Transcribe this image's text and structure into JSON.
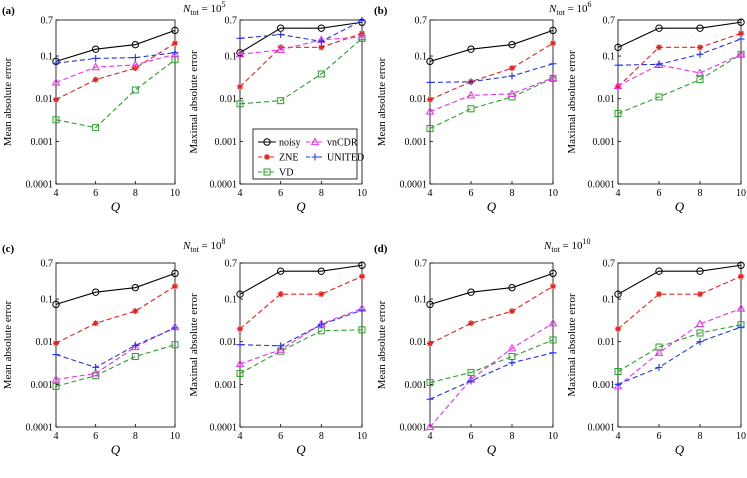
{
  "colors": {
    "noisy": "#000000",
    "ZNE": "#e8201c",
    "VD": "#26a326",
    "vnCDR": "#ee2bee",
    "UNITED": "#2435e0"
  },
  "legend": {
    "entries": [
      "noisy",
      "ZNE",
      "VD",
      "vnCDR",
      "UNITED"
    ]
  },
  "chart_data": [
    {
      "type": "line",
      "panel_label": "(a)",
      "ntot_prefix": "N",
      "ntot_sub": "tot",
      "ntot_mid": " = 10",
      "ntot_exp": "5",
      "subplot": "left",
      "ylabel": "Mean absolute error",
      "xlabel": "Q",
      "x": [
        4,
        6,
        8,
        10
      ],
      "ylim": [
        0.0001,
        0.7
      ],
      "yscale": "log",
      "xticks": [
        "4",
        "6",
        "8",
        "10"
      ],
      "yticks": [
        "0.0001",
        "0.001",
        "0.01",
        "0.1",
        "0.7"
      ],
      "series": [
        {
          "name": "noisy",
          "values": [
            0.075,
            0.145,
            0.185,
            0.4
          ]
        },
        {
          "name": "ZNE",
          "values": [
            0.0095,
            0.028,
            0.052,
            0.2
          ]
        },
        {
          "name": "VD",
          "values": [
            0.0032,
            0.0021,
            0.016,
            0.082
          ]
        },
        {
          "name": "vnCDR",
          "values": [
            0.024,
            0.055,
            0.062,
            0.11
          ]
        },
        {
          "name": "UNITED",
          "values": [
            0.068,
            0.088,
            0.092,
            0.12
          ]
        }
      ]
    },
    {
      "type": "line",
      "subplot": "right",
      "ylabel": "Maximal absolute error",
      "xlabel": "Q",
      "x": [
        4,
        6,
        8,
        10
      ],
      "ylim": [
        0.0001,
        0.7
      ],
      "yscale": "log",
      "xticks": [
        "4",
        "6",
        "8",
        "10"
      ],
      "yticks": [
        "0.0001",
        "0.001",
        "0.01",
        "0.1",
        "0.7"
      ],
      "series": [
        {
          "name": "noisy",
          "values": [
            0.12,
            0.45,
            0.45,
            0.62
          ]
        },
        {
          "name": "ZNE",
          "values": [
            0.019,
            0.16,
            0.16,
            0.34
          ]
        },
        {
          "name": "VD",
          "values": [
            0.0076,
            0.009,
            0.038,
            0.26
          ]
        },
        {
          "name": "vnCDR",
          "values": [
            0.11,
            0.14,
            0.24,
            0.28
          ]
        },
        {
          "name": "UNITED",
          "values": [
            0.26,
            0.32,
            0.22,
            0.68
          ]
        }
      ]
    },
    {
      "type": "line",
      "panel_label": "(b)",
      "ntot_prefix": "N",
      "ntot_sub": "tot",
      "ntot_mid": " = 10",
      "ntot_exp": "6",
      "subplot": "left",
      "ylabel": "Mean absolute error",
      "xlabel": "Q",
      "x": [
        4,
        6,
        8,
        10
      ],
      "ylim": [
        0.0001,
        0.7
      ],
      "yscale": "log",
      "xticks": [
        "4",
        "6",
        "8",
        "10"
      ],
      "yticks": [
        "0.0001",
        "0.001",
        "0.01",
        "0.1",
        "0.7"
      ],
      "series": [
        {
          "name": "noisy",
          "values": [
            0.075,
            0.145,
            0.185,
            0.4
          ]
        },
        {
          "name": "ZNE",
          "values": [
            0.0095,
            0.025,
            0.052,
            0.2
          ]
        },
        {
          "name": "VD",
          "values": [
            0.002,
            0.0058,
            0.011,
            0.03
          ]
        },
        {
          "name": "vnCDR",
          "values": [
            0.005,
            0.012,
            0.013,
            0.031
          ]
        },
        {
          "name": "UNITED",
          "values": [
            0.024,
            0.025,
            0.034,
            0.066
          ]
        }
      ]
    },
    {
      "type": "line",
      "subplot": "right",
      "ylabel": "Maximal absolute error",
      "xlabel": "Q",
      "x": [
        4,
        6,
        8,
        10
      ],
      "ylim": [
        0.0001,
        0.7
      ],
      "yscale": "log",
      "xticks": [
        "4",
        "6",
        "8",
        "10"
      ],
      "yticks": [
        "0.0001",
        "0.001",
        "0.01",
        "0.1",
        "0.7"
      ],
      "series": [
        {
          "name": "noisy",
          "values": [
            0.16,
            0.45,
            0.45,
            0.62
          ]
        },
        {
          "name": "ZNE",
          "values": [
            0.019,
            0.16,
            0.16,
            0.34
          ]
        },
        {
          "name": "VD",
          "values": [
            0.0045,
            0.011,
            0.028,
            0.11
          ]
        },
        {
          "name": "vnCDR",
          "values": [
            0.02,
            0.062,
            0.04,
            0.11
          ]
        },
        {
          "name": "UNITED",
          "values": [
            0.061,
            0.064,
            0.11,
            0.25
          ]
        }
      ]
    },
    {
      "type": "line",
      "panel_label": "(c)",
      "ntot_prefix": "N",
      "ntot_sub": "tot",
      "ntot_mid": " = 10",
      "ntot_exp": "8",
      "subplot": "left",
      "ylabel": "Mean absolute error",
      "xlabel": "Q",
      "x": [
        4,
        6,
        8,
        10
      ],
      "ylim": [
        0.0001,
        0.7
      ],
      "yscale": "log",
      "xticks": [
        "4",
        "6",
        "8",
        "10"
      ],
      "yticks": [
        "0.0001",
        "0.001",
        "0.01",
        "0.1",
        "0.7"
      ],
      "series": [
        {
          "name": "noisy",
          "values": [
            0.075,
            0.145,
            0.185,
            0.4
          ]
        },
        {
          "name": "ZNE",
          "values": [
            0.0092,
            0.027,
            0.052,
            0.2
          ]
        },
        {
          "name": "VD",
          "values": [
            0.0009,
            0.0016,
            0.0045,
            0.0085
          ]
        },
        {
          "name": "vnCDR",
          "values": [
            0.0013,
            0.0018,
            0.0075,
            0.022
          ]
        },
        {
          "name": "UNITED",
          "values": [
            0.005,
            0.0025,
            0.0082,
            0.021
          ]
        }
      ]
    },
    {
      "type": "line",
      "subplot": "right",
      "ylabel": "Maximal absolute error",
      "xlabel": "Q",
      "x": [
        4,
        6,
        8,
        10
      ],
      "ylim": [
        0.0001,
        0.7
      ],
      "yscale": "log",
      "xticks": [
        "4",
        "6",
        "8",
        "10"
      ],
      "yticks": [
        "0.0001",
        "0.001",
        "0.01",
        "0.1",
        "0.7"
      ],
      "series": [
        {
          "name": "noisy",
          "values": [
            0.13,
            0.45,
            0.45,
            0.62
          ]
        },
        {
          "name": "ZNE",
          "values": [
            0.02,
            0.13,
            0.13,
            0.34
          ]
        },
        {
          "name": "VD",
          "values": [
            0.0018,
            0.006,
            0.018,
            0.019
          ]
        },
        {
          "name": "vnCDR",
          "values": [
            0.003,
            0.0065,
            0.026,
            0.06
          ]
        },
        {
          "name": "UNITED",
          "values": [
            0.0085,
            0.008,
            0.025,
            0.055
          ]
        }
      ]
    },
    {
      "type": "line",
      "panel_label": "(d)",
      "ntot_prefix": "N",
      "ntot_sub": "tot",
      "ntot_mid": " = 10",
      "ntot_exp": "10",
      "subplot": "left",
      "ylabel": "Mean absolute error",
      "xlabel": "Q",
      "x": [
        4,
        6,
        8,
        10
      ],
      "ylim": [
        0.0001,
        0.7
      ],
      "yscale": "log",
      "xticks": [
        "4",
        "6",
        "8",
        "10"
      ],
      "yticks": [
        "0.0001",
        "0.001",
        "0.01",
        "0.1",
        "0.7"
      ],
      "series": [
        {
          "name": "noisy",
          "values": [
            0.075,
            0.145,
            0.185,
            0.4
          ]
        },
        {
          "name": "ZNE",
          "values": [
            0.009,
            0.027,
            0.052,
            0.2
          ]
        },
        {
          "name": "VD",
          "values": [
            0.0011,
            0.0019,
            0.0045,
            0.011
          ]
        },
        {
          "name": "vnCDR",
          "values": [
            0.0001,
            0.0013,
            0.007,
            0.027
          ]
        },
        {
          "name": "UNITED",
          "values": [
            0.00045,
            0.0012,
            0.0032,
            0.0055
          ]
        }
      ]
    },
    {
      "type": "line",
      "subplot": "right",
      "ylabel": "Maximal absolute error",
      "xlabel": "Q",
      "x": [
        4,
        6,
        8,
        10
      ],
      "ylim": [
        0.0001,
        0.7
      ],
      "yscale": "log",
      "xticks": [
        "4",
        "6",
        "8",
        "10"
      ],
      "yticks": [
        "0.0001",
        "0.001",
        "0.01",
        "0.1",
        "0.7"
      ],
      "series": [
        {
          "name": "noisy",
          "values": [
            0.13,
            0.45,
            0.45,
            0.62
          ]
        },
        {
          "name": "ZNE",
          "values": [
            0.02,
            0.13,
            0.13,
            0.34
          ]
        },
        {
          "name": "VD",
          "values": [
            0.002,
            0.0075,
            0.016,
            0.025
          ]
        },
        {
          "name": "vnCDR",
          "values": [
            0.0009,
            0.0055,
            0.026,
            0.06
          ]
        },
        {
          "name": "UNITED",
          "values": [
            0.001,
            0.0025,
            0.01,
            0.022
          ]
        }
      ]
    }
  ]
}
